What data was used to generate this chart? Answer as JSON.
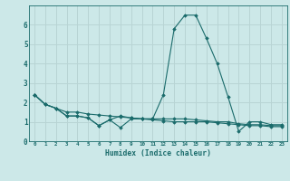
{
  "x": [
    0,
    1,
    2,
    3,
    4,
    5,
    6,
    7,
    8,
    9,
    10,
    11,
    12,
    13,
    14,
    15,
    16,
    17,
    18,
    19,
    20,
    21,
    22,
    23
  ],
  "line1": [
    2.4,
    1.9,
    1.7,
    1.3,
    1.3,
    1.2,
    0.8,
    1.1,
    0.7,
    1.15,
    1.15,
    1.15,
    2.4,
    5.8,
    6.5,
    6.5,
    5.3,
    4.0,
    2.3,
    0.5,
    1.0,
    1.0,
    0.85,
    0.85
  ],
  "line2": [
    2.4,
    1.9,
    1.7,
    1.3,
    1.3,
    1.2,
    0.8,
    1.1,
    1.3,
    1.2,
    1.15,
    1.15,
    1.15,
    1.15,
    1.15,
    1.1,
    1.05,
    1.0,
    1.0,
    0.9,
    0.85,
    0.85,
    0.8,
    0.8
  ],
  "line3": [
    2.4,
    1.9,
    1.7,
    1.5,
    1.5,
    1.4,
    1.35,
    1.3,
    1.25,
    1.2,
    1.15,
    1.1,
    1.05,
    1.0,
    1.0,
    1.0,
    1.0,
    0.95,
    0.9,
    0.85,
    0.8,
    0.8,
    0.75,
    0.75
  ],
  "bg_color": "#cce8e8",
  "line_color": "#1a6b6b",
  "grid_color": "#b8d4d4",
  "xlabel": "Humidex (Indice chaleur)",
  "ylim": [
    0,
    7
  ],
  "xlim": [
    -0.5,
    23.5
  ],
  "yticks": [
    0,
    1,
    2,
    3,
    4,
    5,
    6
  ],
  "xticks": [
    0,
    1,
    2,
    3,
    4,
    5,
    6,
    7,
    8,
    9,
    10,
    11,
    12,
    13,
    14,
    15,
    16,
    17,
    18,
    19,
    20,
    21,
    22,
    23
  ]
}
